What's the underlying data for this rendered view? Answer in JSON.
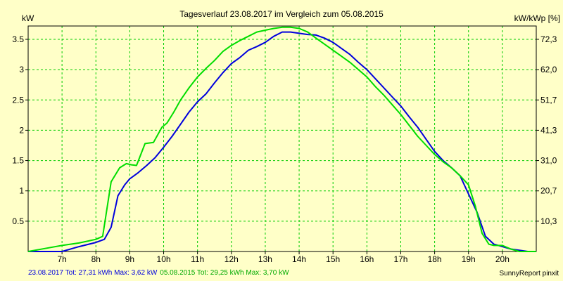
{
  "chart_data": {
    "type": "line",
    "title": "Tagesverlauf 23.08.2017 im Vergleich zum 05.08.2015",
    "ylabel": "kW",
    "y2label": "kW/kWp [%]",
    "xlim": [
      6.0,
      21.0
    ],
    "ylim": [
      0,
      3.72
    ],
    "x_ticks": [
      7,
      8,
      9,
      10,
      11,
      12,
      13,
      14,
      15,
      16,
      17,
      18,
      19,
      20
    ],
    "x_tick_labels": [
      "7h",
      "8h",
      "9h",
      "10h",
      "11h",
      "12h",
      "13h",
      "14h",
      "15h",
      "16h",
      "17h",
      "18h",
      "19h",
      "20h"
    ],
    "y_ticks": [
      0.5,
      1,
      1.5,
      2,
      2.5,
      3,
      3.5
    ],
    "y_tick_labels": [
      "0.5",
      "1",
      "1.5",
      "2",
      "2.5",
      "3",
      "3.5"
    ],
    "y2_ticks": [
      0.5,
      1.0,
      1.5,
      2.0,
      2.5,
      3.0,
      3.5
    ],
    "y2_tick_labels": [
      "10,3",
      "20,7",
      "31,0",
      "41,3",
      "51,7",
      "62,0",
      "72,3"
    ],
    "grid": true,
    "series": [
      {
        "name": "23.08.2017",
        "color": "#0000dd",
        "x": [
          6.0,
          6.5,
          7.0,
          7.5,
          8.0,
          8.25,
          8.45,
          8.65,
          8.85,
          9.0,
          9.25,
          9.5,
          9.75,
          10.0,
          10.25,
          10.5,
          10.75,
          11.0,
          11.25,
          11.5,
          11.75,
          12.0,
          12.25,
          12.5,
          12.75,
          13.0,
          13.25,
          13.5,
          13.75,
          14.0,
          14.25,
          14.5,
          14.75,
          15.0,
          15.25,
          15.5,
          15.75,
          16.0,
          16.25,
          16.5,
          16.75,
          17.0,
          17.25,
          17.5,
          17.75,
          18.0,
          18.25,
          18.5,
          18.75,
          19.0,
          19.25,
          19.5,
          19.75,
          20.0,
          20.25,
          20.5,
          20.75,
          21.0
        ],
        "y": [
          0.0,
          0.0,
          0.0,
          0.08,
          0.15,
          0.2,
          0.4,
          0.92,
          1.1,
          1.2,
          1.3,
          1.42,
          1.55,
          1.72,
          1.9,
          2.1,
          2.3,
          2.47,
          2.6,
          2.78,
          2.95,
          3.1,
          3.2,
          3.32,
          3.38,
          3.45,
          3.55,
          3.62,
          3.62,
          3.6,
          3.58,
          3.57,
          3.52,
          3.45,
          3.35,
          3.25,
          3.12,
          3.0,
          2.85,
          2.7,
          2.55,
          2.4,
          2.22,
          2.05,
          1.85,
          1.65,
          1.5,
          1.38,
          1.25,
          0.95,
          0.65,
          0.25,
          0.12,
          0.08,
          0.04,
          0.02,
          0.0,
          0.0
        ]
      },
      {
        "name": "05.08.2015",
        "color": "#00dd00",
        "x": [
          6.0,
          6.5,
          7.0,
          7.5,
          8.0,
          8.2,
          8.45,
          8.7,
          8.9,
          9.05,
          9.2,
          9.45,
          9.7,
          9.95,
          10.1,
          10.3,
          10.5,
          10.75,
          11.0,
          11.25,
          11.5,
          11.75,
          12.0,
          12.25,
          12.5,
          12.75,
          13.0,
          13.25,
          13.5,
          13.75,
          14.0,
          14.25,
          14.5,
          14.75,
          15.0,
          15.25,
          15.5,
          15.75,
          16.0,
          16.25,
          16.5,
          16.75,
          17.0,
          17.25,
          17.5,
          17.75,
          18.0,
          18.25,
          18.5,
          18.75,
          19.0,
          19.2,
          19.4,
          19.6,
          19.75,
          20.0,
          20.25,
          20.5,
          20.75,
          21.0
        ],
        "y": [
          0.0,
          0.05,
          0.1,
          0.14,
          0.2,
          0.25,
          1.15,
          1.38,
          1.45,
          1.43,
          1.42,
          1.78,
          1.8,
          2.05,
          2.12,
          2.3,
          2.5,
          2.7,
          2.88,
          3.02,
          3.15,
          3.3,
          3.4,
          3.48,
          3.55,
          3.62,
          3.65,
          3.68,
          3.7,
          3.7,
          3.68,
          3.62,
          3.52,
          3.42,
          3.32,
          3.22,
          3.12,
          3.0,
          2.88,
          2.72,
          2.58,
          2.42,
          2.26,
          2.08,
          1.9,
          1.75,
          1.6,
          1.48,
          1.38,
          1.25,
          1.1,
          0.75,
          0.3,
          0.12,
          0.1,
          0.1,
          0.04,
          0.0,
          0.0,
          0.0
        ]
      }
    ],
    "footer": [
      {
        "text": "23.08.2017 Tot: 27,31 kWh Max: 3,62 kW",
        "color": "#0000dd"
      },
      {
        "text": "05.08.2015 Tot: 29,25 kWh Max: 3,70 kW",
        "color": "#00aa00"
      }
    ],
    "credit": "SunnyReport pinxit"
  }
}
